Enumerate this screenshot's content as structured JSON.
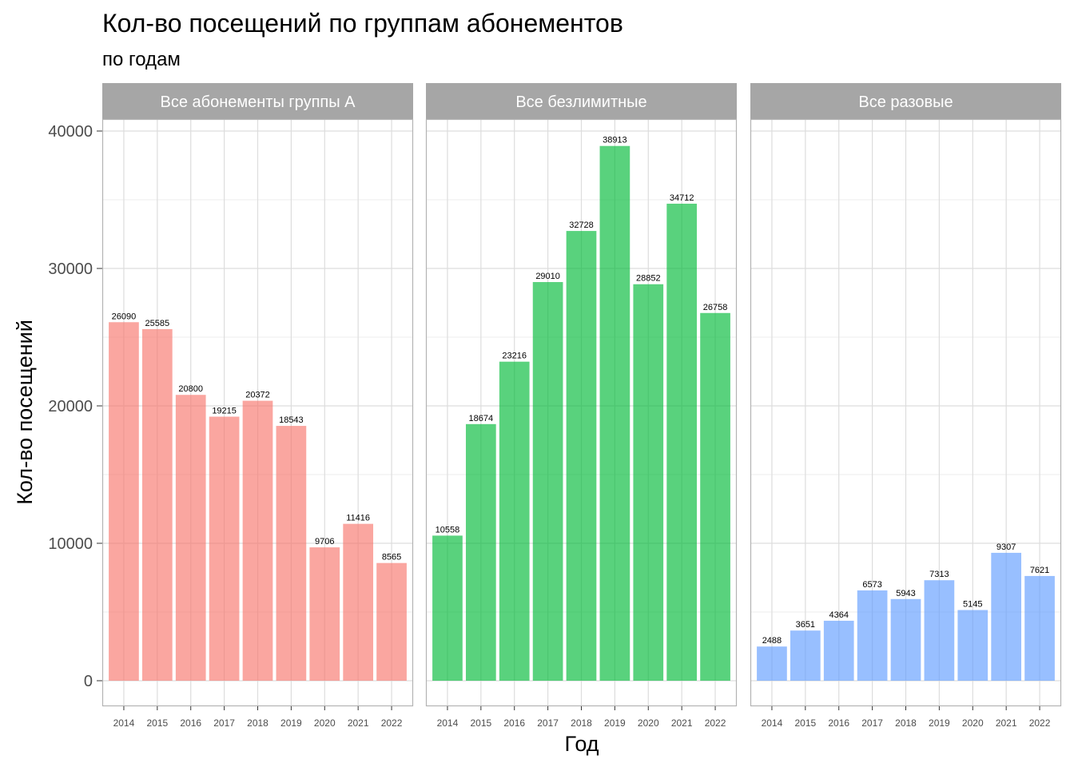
{
  "chart_data": {
    "type": "bar",
    "title": "Кол-во посещений по группам абонементов",
    "subtitle": "по годам",
    "xlabel": "Год",
    "ylabel": "Кол-во посещений",
    "ylim": [
      0,
      40000
    ],
    "yticks": [
      0,
      10000,
      20000,
      30000,
      40000
    ],
    "ytick_labels": [
      "0",
      "10000",
      "20000",
      "30000",
      "40000"
    ],
    "grid": true,
    "categories": [
      "2014",
      "2015",
      "2016",
      "2017",
      "2018",
      "2019",
      "2020",
      "2021",
      "2022"
    ],
    "facets": [
      {
        "name": "Все абонементы группы А",
        "color": "#F8766D",
        "values": [
          26090,
          25585,
          20800,
          19215,
          20372,
          18543,
          9706,
          11416,
          8565
        ]
      },
      {
        "name": "Все безлимитные",
        "color": "#00BA38",
        "values": [
          10558,
          18674,
          23216,
          29010,
          32728,
          38913,
          28852,
          34712,
          26758
        ]
      },
      {
        "name": "Все разовые",
        "color": "#619CFF",
        "values": [
          2488,
          3651,
          4364,
          6573,
          5943,
          7313,
          5145,
          9307,
          7621
        ]
      }
    ]
  },
  "style": {
    "strip_bg": "#A6A6A6",
    "panel_border": "#B3B3B3",
    "grid_major": "#DDDDDD",
    "grid_minor": "#EEEEEE",
    "bar_opacity": 0.65
  }
}
